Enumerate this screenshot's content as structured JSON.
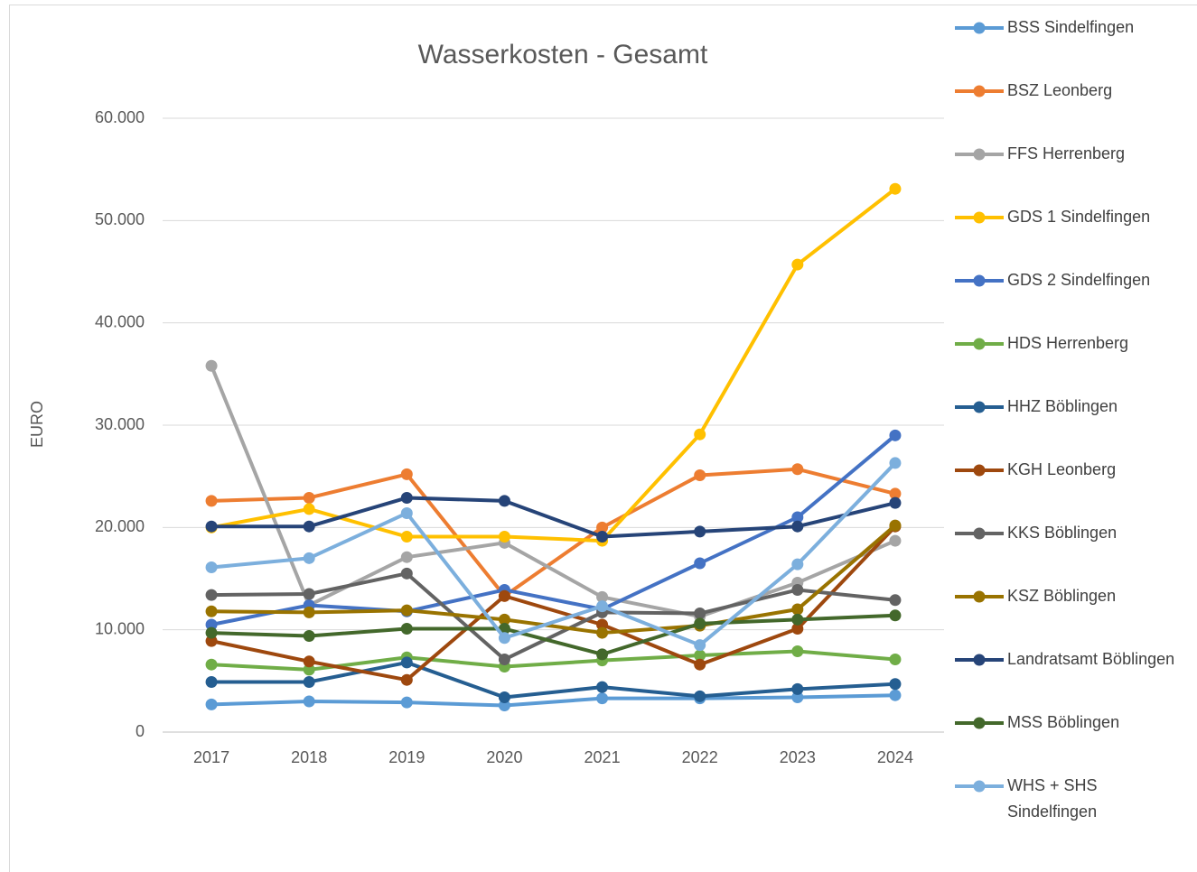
{
  "chart_data": {
    "type": "line",
    "title": "Wasserkosten - Gesamt",
    "y_label": "EURO",
    "categories": [
      "2017",
      "2018",
      "2019",
      "2020",
      "2021",
      "2022",
      "2023",
      "2024"
    ],
    "ylim": [
      0,
      60000
    ],
    "yticks": [
      0,
      {
        "value": 10000,
        "label": "10.000"
      },
      {
        "value": 20000,
        "label": "20.000"
      },
      {
        "value": 30000,
        "label": "30.000"
      },
      {
        "value": 40000,
        "label": "40.000"
      },
      {
        "value": 50000,
        "label": "50.000"
      },
      {
        "value": 60000,
        "label": "60.000"
      }
    ],
    "grid": true,
    "legend": "right",
    "series": [
      {
        "name": "BSS Sindelfingen",
        "color": "#5b9bd5",
        "values": [
          2700,
          3000,
          2900,
          2600,
          3300,
          3300,
          3400,
          3600
        ]
      },
      {
        "name": "BSZ Leonberg",
        "color": "#ed7d31",
        "values": [
          22600,
          22900,
          25200,
          13300,
          20000,
          25100,
          25700,
          23300
        ]
      },
      {
        "name": "FFS Herrenberg",
        "color": "#a5a5a5",
        "values": [
          35800,
          12400,
          17100,
          18500,
          13200,
          11300,
          14600,
          18700
        ]
      },
      {
        "name": "GDS 1 Sindelfingen",
        "color": "#ffc000",
        "values": [
          20000,
          21800,
          19100,
          19100,
          18700,
          29100,
          45700,
          53100
        ]
      },
      {
        "name": "GDS 2 Sindelfingen",
        "color": "#4472c4",
        "values": [
          10500,
          12400,
          11800,
          13900,
          12000,
          16500,
          21000,
          29000
        ]
      },
      {
        "name": "HDS Herrenberg",
        "color": "#70ad47",
        "values": [
          6600,
          6100,
          7300,
          6400,
          7000,
          7500,
          7900,
          7100
        ]
      },
      {
        "name": "HHZ Böblingen",
        "color": "#255e91",
        "values": [
          4900,
          4900,
          6800,
          3400,
          4400,
          3500,
          4200,
          4700
        ]
      },
      {
        "name": "KGH Leonberg",
        "color": "#9e480e",
        "values": [
          8900,
          6900,
          5100,
          13300,
          10500,
          6600,
          10100,
          20100
        ]
      },
      {
        "name": "KKS Böblingen",
        "color": "#636363",
        "values": [
          13400,
          13500,
          15500,
          7100,
          11700,
          11600,
          13900,
          12900
        ]
      },
      {
        "name": "KSZ Böblingen",
        "color": "#997300",
        "values": [
          11800,
          11700,
          11900,
          11000,
          9700,
          10400,
          12000,
          20200
        ]
      },
      {
        "name": "Landratsamt Böblingen",
        "color": "#264478",
        "values": [
          20100,
          20100,
          22900,
          22600,
          19100,
          19600,
          20100,
          22400
        ]
      },
      {
        "name": "MSS Böblingen",
        "color": "#43682b",
        "values": [
          9700,
          9400,
          10100,
          10100,
          7600,
          10600,
          11000,
          11400
        ]
      },
      {
        "name": "WHS + SHS Sindelfingen",
        "color": "#7cafdd",
        "values": [
          16100,
          17000,
          21400,
          9200,
          12300,
          8500,
          16400,
          26300
        ]
      }
    ]
  }
}
